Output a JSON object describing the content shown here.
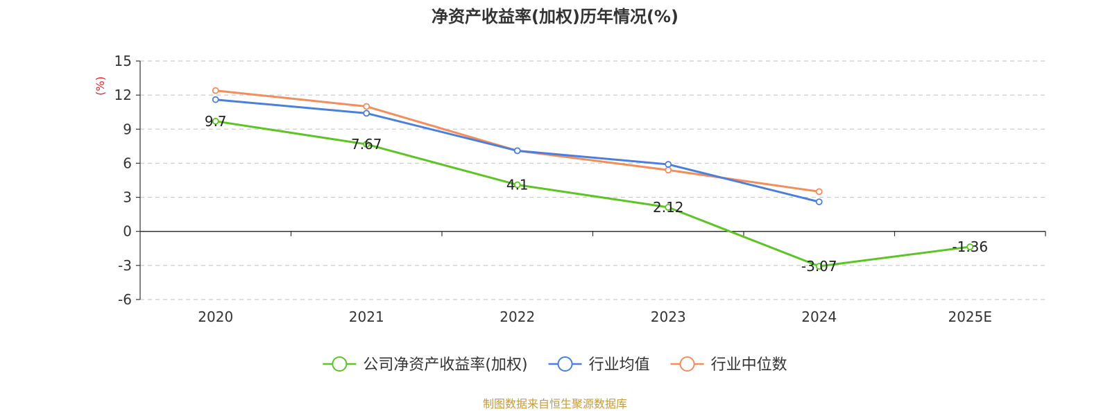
{
  "chart_data": {
    "type": "line",
    "title": "净资产收益率(加权)历年情况(%)",
    "ylabel": "(%)",
    "xlabel": "",
    "categories": [
      "2020",
      "2021",
      "2022",
      "2023",
      "2024",
      "2025E"
    ],
    "ylim": [
      -6,
      15
    ],
    "yticks": [
      "15",
      "12",
      "9",
      "6",
      "3",
      "0",
      "-3",
      "-6"
    ],
    "grid": true,
    "legend_position": "bottom",
    "series": [
      {
        "name": "公司净资产收益率(加权)",
        "color": "#5cc524",
        "values": [
          9.7,
          7.67,
          4.1,
          2.12,
          -3.07,
          -1.36
        ],
        "labels": [
          "9.7",
          "7.67",
          "4.1",
          "2.12",
          "-3.07",
          "-1.36"
        ]
      },
      {
        "name": "行业均值",
        "color": "#4a7fe0",
        "values": [
          11.6,
          10.4,
          7.1,
          5.9,
          2.6,
          null
        ]
      },
      {
        "name": "行业中位数",
        "color": "#f58c5c",
        "values": [
          12.4,
          11.0,
          7.1,
          5.4,
          3.5,
          null
        ]
      }
    ],
    "ylabel_color": "#e8262c"
  },
  "source": {
    "text": "制图数据来自恒生聚源数据库",
    "color": "#c99a3c"
  }
}
